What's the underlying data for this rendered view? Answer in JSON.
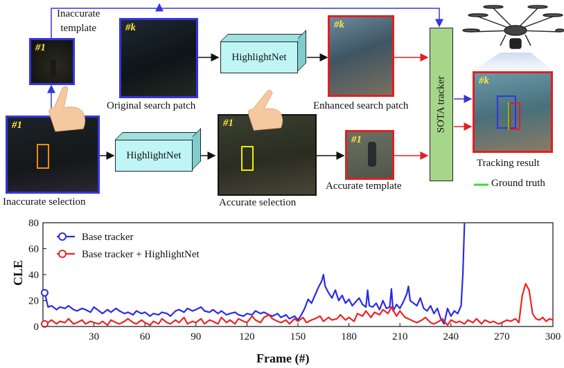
{
  "diagram": {
    "labels": {
      "inaccurate_template": "Inaccurate\ntemplate",
      "original_search_patch": "Original search patch",
      "enhanced_search_patch": "Enhanced search patch",
      "inaccurate_selection": "Inaccurate selection",
      "accurate_selection": "Accurate selection",
      "accurate_template": "Accurate template",
      "tracking_result": "Tracking result",
      "ground_truth": "Ground truth"
    },
    "blocks": {
      "highlightnet_top": "HighlightNet",
      "highlightnet_bottom": "HighlightNet",
      "sota_tracker": "SOTA  tracker"
    },
    "frame_tags": {
      "inaccurate_template": "#1",
      "original_search": "#k",
      "enhanced_search": "#k",
      "inaccurate_selection": "#1",
      "accurate_selection": "#1",
      "accurate_template": "#1",
      "tracking_result": "#k"
    },
    "colors": {
      "blue_frame": "#3535e0",
      "red_frame": "#e02020",
      "black_frame": "#111111",
      "orange_box": "#ff8c00",
      "yellow_box": "#f0f000",
      "ground_truth": "#30e030",
      "net_fill": "#bff5f5",
      "sota_fill": "#a6d68a"
    }
  },
  "chart_data": {
    "type": "line",
    "xlabel": "Frame (#)",
    "ylabel": "CLE",
    "xlim": [
      0,
      300
    ],
    "ylim": [
      0,
      80
    ],
    "xticks": [
      30,
      60,
      90,
      120,
      150,
      180,
      210,
      240,
      270,
      300
    ],
    "yticks": [
      0,
      20,
      40,
      60,
      80
    ],
    "legend_position": "top-left",
    "series": [
      {
        "name": "Base tracker",
        "color": "#2a2ae8",
        "x": [
          1,
          3,
          5,
          8,
          10,
          13,
          15,
          18,
          20,
          23,
          25,
          28,
          30,
          33,
          35,
          38,
          40,
          43,
          45,
          48,
          50,
          53,
          55,
          58,
          60,
          63,
          65,
          68,
          70,
          73,
          75,
          78,
          80,
          83,
          85,
          88,
          90,
          93,
          95,
          98,
          100,
          103,
          105,
          108,
          110,
          113,
          115,
          118,
          120,
          123,
          125,
          128,
          130,
          133,
          135,
          138,
          140,
          143,
          145,
          148,
          150,
          152,
          154,
          156,
          158,
          160,
          162,
          164,
          165,
          166,
          168,
          170,
          172,
          174,
          176,
          178,
          180,
          182,
          184,
          186,
          188,
          190,
          191,
          192,
          194,
          196,
          198,
          200,
          202,
          204,
          205,
          206,
          208,
          210,
          212,
          214,
          215,
          216,
          218,
          220,
          222,
          224,
          226,
          228,
          230,
          232,
          234,
          236,
          238,
          240,
          242,
          244,
          246,
          247,
          248
        ],
        "values": [
          26,
          15,
          16,
          13,
          15,
          14,
          16,
          13,
          12,
          14,
          13,
          11,
          15,
          12,
          10,
          13,
          11,
          14,
          12,
          10,
          11,
          9,
          12,
          10,
          11,
          8,
          10,
          9,
          11,
          10,
          8,
          12,
          13,
          11,
          14,
          12,
          13,
          15,
          12,
          11,
          13,
          10,
          12,
          9,
          10,
          11,
          9,
          8,
          10,
          9,
          12,
          10,
          11,
          9,
          8,
          10,
          7,
          9,
          6,
          8,
          5,
          9,
          14,
          21,
          18,
          24,
          30,
          35,
          40,
          31,
          26,
          22,
          28,
          20,
          24,
          18,
          21,
          16,
          19,
          22,
          17,
          15,
          28,
          16,
          15,
          18,
          13,
          20,
          14,
          15,
          29,
          12,
          17,
          14,
          19,
          25,
          31,
          20,
          18,
          16,
          22,
          14,
          12,
          16,
          10,
          14,
          6,
          2,
          14,
          8,
          12,
          10,
          16,
          40,
          80
        ]
      },
      {
        "name": "Base tracker + HighlightNet",
        "color": "#ee2222",
        "x": [
          1,
          3,
          5,
          8,
          10,
          13,
          15,
          18,
          20,
          23,
          25,
          28,
          30,
          33,
          35,
          38,
          40,
          43,
          45,
          48,
          50,
          53,
          55,
          58,
          60,
          63,
          65,
          68,
          70,
          73,
          75,
          78,
          80,
          83,
          85,
          88,
          90,
          93,
          95,
          98,
          100,
          103,
          105,
          108,
          110,
          113,
          115,
          118,
          120,
          123,
          125,
          128,
          130,
          133,
          135,
          138,
          140,
          143,
          145,
          148,
          150,
          153,
          155,
          158,
          160,
          163,
          165,
          168,
          170,
          173,
          175,
          178,
          180,
          183,
          185,
          188,
          190,
          193,
          195,
          198,
          200,
          203,
          205,
          208,
          210,
          213,
          215,
          218,
          220,
          223,
          225,
          228,
          230,
          233,
          235,
          238,
          240,
          243,
          245,
          248,
          250,
          253,
          255,
          258,
          260,
          263,
          265,
          268,
          270,
          273,
          275,
          278,
          280,
          282,
          284,
          286,
          288,
          290,
          292,
          294,
          296,
          298,
          300
        ],
        "values": [
          2,
          3,
          5,
          2,
          4,
          3,
          6,
          2,
          3,
          5,
          2,
          4,
          3,
          2,
          4,
          1,
          5,
          3,
          2,
          4,
          6,
          3,
          2,
          5,
          3,
          1,
          4,
          2,
          6,
          3,
          2,
          5,
          3,
          7,
          2,
          4,
          3,
          6,
          2,
          5,
          4,
          2,
          7,
          3,
          5,
          2,
          6,
          4,
          3,
          8,
          5,
          3,
          7,
          9,
          6,
          4,
          3,
          5,
          2,
          6,
          4,
          7,
          3,
          5,
          6,
          8,
          4,
          7,
          5,
          6,
          9,
          5,
          7,
          4,
          10,
          8,
          12,
          7,
          11,
          9,
          13,
          10,
          15,
          8,
          12,
          7,
          6,
          4,
          3,
          5,
          7,
          3,
          2,
          4,
          6,
          1,
          5,
          3,
          4,
          2,
          5,
          3,
          6,
          2,
          5,
          3,
          4,
          2,
          3,
          5,
          4,
          6,
          3,
          24,
          33,
          28,
          10,
          6,
          5,
          7,
          4,
          6,
          5
        ]
      }
    ]
  }
}
